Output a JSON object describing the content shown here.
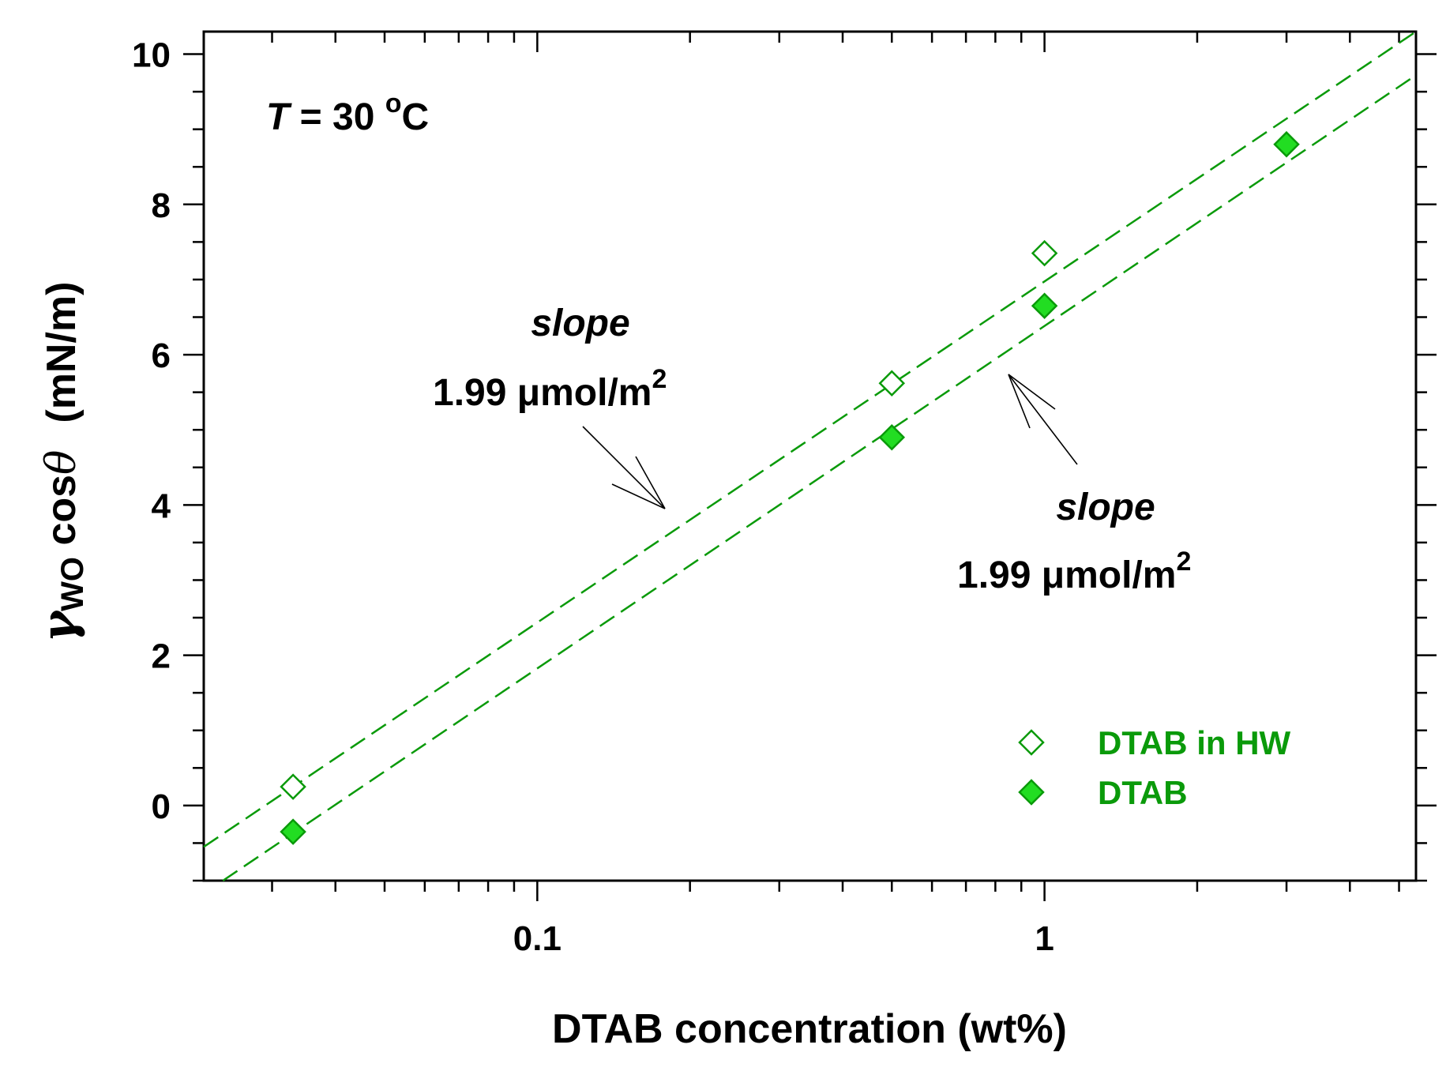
{
  "chart_data": {
    "type": "scatter",
    "x_scale": "log",
    "xlim": [
      0.022,
      5.4
    ],
    "ylim": [
      -1,
      10.3
    ],
    "x_ticks": [
      {
        "value": 0.1,
        "label": "0.1"
      },
      {
        "value": 1,
        "label": "1"
      }
    ],
    "y_ticks": [
      {
        "value": 0,
        "label": "0"
      },
      {
        "value": 2,
        "label": "2"
      },
      {
        "value": 4,
        "label": "4"
      },
      {
        "value": 6,
        "label": "6"
      },
      {
        "value": 8,
        "label": "8"
      },
      {
        "value": 10,
        "label": "10"
      }
    ],
    "xlabel": "DTAB concentration (wt%)",
    "ylabel": {
      "symbol": "γ",
      "subscript": "WO",
      "text": " cos",
      "theta": "θ",
      "units": "(mN/m)"
    },
    "temperature_label": {
      "italic": "T",
      "rest": " = 30 ",
      "sup": "o",
      "unit": "C"
    },
    "series": [
      {
        "name": "DTAB in HW",
        "marker": "open-diamond",
        "color": "#0a9a0a",
        "x": [
          0.033,
          0.5,
          1.0
        ],
        "y": [
          0.25,
          5.62,
          7.35
        ],
        "fit": {
          "x": [
            0.022,
            5.4
          ],
          "y": [
            -0.55,
            10.3
          ]
        }
      },
      {
        "name": "DTAB",
        "marker": "filled-diamond",
        "color": "#0a9a0a",
        "fill": "#22dd22",
        "x": [
          0.033,
          0.5,
          1.0,
          3.0
        ],
        "y": [
          -0.35,
          4.9,
          6.65,
          8.8
        ],
        "fit": {
          "x": [
            0.024,
            5.4
          ],
          "y": [
            -1.0,
            9.72
          ]
        }
      }
    ],
    "annotations": [
      {
        "italic": "slope",
        "value": "1.99 μmol/m",
        "sup": "2",
        "position": "upper-left",
        "points_to": "DTAB in HW"
      },
      {
        "italic": "slope",
        "value": "1.99 μmol/m",
        "sup": "2",
        "position": "lower-right",
        "points_to": "DTAB"
      }
    ],
    "legend": {
      "placement": "bottom-right"
    },
    "grid": false
  }
}
